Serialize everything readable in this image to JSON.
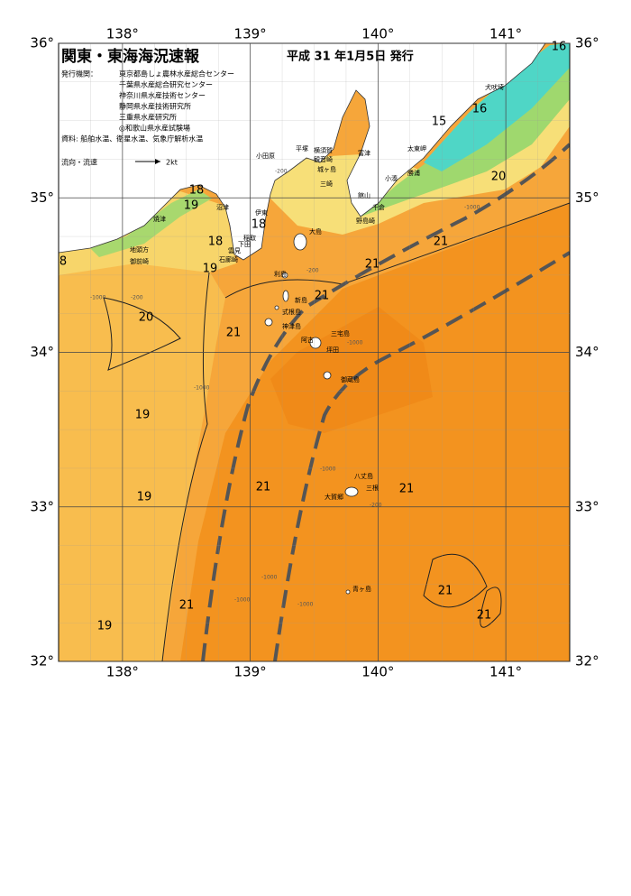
{
  "header": {
    "title": "関東・東海海況速報",
    "issue_date": "平成 31 年1月5日 発行",
    "issuer_label": "発行機関：",
    "issuers": [
      "東京都島しょ農林水産総合センター",
      "千葉県水産総合研究センター",
      "神奈川県水産技術センター",
      "静岡県水産技術研究所",
      "三重県水産研究所",
      "◎和歌山県水産試験場"
    ],
    "sources": "資料: 船舶水温、衛星水温、気象庁解析水温",
    "legend_label": "流向・流速",
    "legend_scale": "2kt"
  },
  "map": {
    "lonlim": [
      137.5,
      141.5
    ],
    "latlim": [
      32,
      36
    ],
    "lon_ticks": [
      {
        "value": 138,
        "label": "138°"
      },
      {
        "value": 139,
        "label": "139°"
      },
      {
        "value": 140,
        "label": "140°"
      },
      {
        "value": 141,
        "label": "141°"
      }
    ],
    "lat_ticks": [
      {
        "value": 32,
        "label": "32°"
      },
      {
        "value": 33,
        "label": "33°"
      },
      {
        "value": 34,
        "label": "34°"
      },
      {
        "value": 35,
        "label": "35°"
      },
      {
        "value": 36,
        "label": "36°"
      }
    ],
    "place_names": [
      "小田原",
      "平塚",
      "横須賀",
      "観音崎",
      "富津",
      "城ヶ島",
      "三崎",
      "太東岬",
      "犬吠埼",
      "勝浦",
      "小湊",
      "館山",
      "千倉",
      "野島崎",
      "伊東",
      "稲取",
      "下田",
      "雲見",
      "石廊崎",
      "沼津",
      "焼津",
      "地頭方",
      "御前崎",
      "大島",
      "利島",
      "新島",
      "式根島",
      "神津島",
      "三宅島",
      "阿古",
      "坪田",
      "御蔵島",
      "八丈島",
      "三根",
      "大賀郷",
      "青ヶ島"
    ],
    "temperature_labels": [
      16,
      16,
      15,
      20,
      21,
      21,
      21,
      18,
      19,
      18,
      18,
      19,
      8,
      20,
      21,
      19,
      21,
      21,
      19,
      21,
      21,
      21,
      19
    ],
    "depth_labels": [
      -200,
      -1000,
      -200,
      -1000,
      -200,
      -1000,
      -1000,
      -1000,
      -1000,
      -1000,
      -200,
      -1000
    ]
  }
}
